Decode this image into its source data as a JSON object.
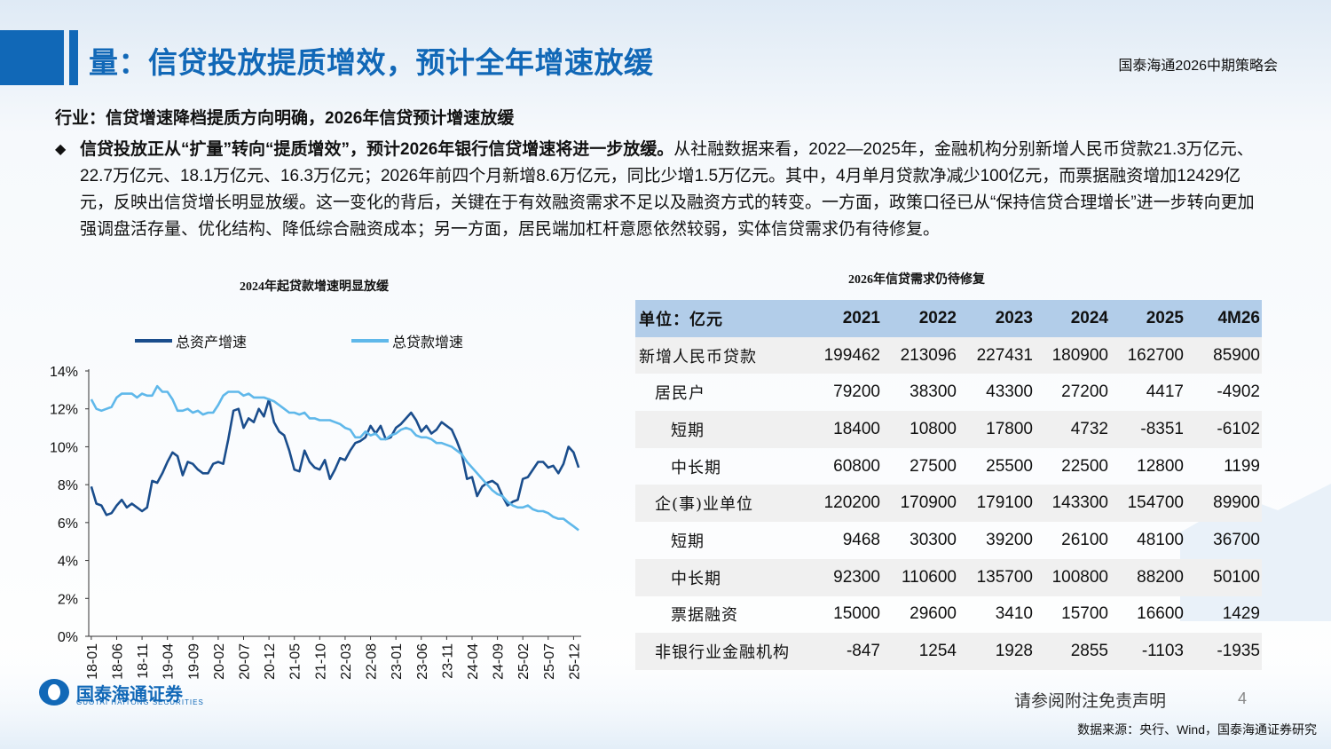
{
  "title": "量：信贷投放提质增效，预计全年增速放缓",
  "conference": "国泰海通2026中期策略会",
  "subheading": "行业：信贷增速降档提质方向明确，2026年信贷预计增速放缓",
  "bullet_symbol": "◆",
  "paragraph": {
    "bold_part": "信贷投放正从“扩量”转向“提质增效”，预计2026年银行信贷增速将进一步放缓。",
    "rest": "从社融数据来看，2022—2025年，金融机构分别新增人民币贷款21.3万亿元、22.7万亿元、18.1万亿元、16.3万亿元；2026年前四个月新增8.6万亿元，同比少增1.5万亿元。其中，4月单月贷款净减少100亿元，而票据融资增加12429亿元，反映出信贷增长明显放缓。这一变化的背后，关键在于有效融资需求不足以及融资方式的转变。一方面，政策口径已从“保持信贷合理增长”进一步转向更加强调盘活存量、优化结构、降低综合融资成本；另一方面，居民端加杠杆意愿依然较弱，实体信贷需求仍有待修复。"
  },
  "chart_data": [
    {
      "type": "line",
      "title": "2024年起贷款增速明显放缓",
      "ylim": [
        0,
        14
      ],
      "yticks": [
        "0%",
        "2%",
        "4%",
        "6%",
        "8%",
        "10%",
        "12%",
        "14%"
      ],
      "x_start_label": "18-01",
      "xticks": [
        "18-01",
        "18-06",
        "18-11",
        "19-04",
        "19-09",
        "20-02",
        "20-07",
        "20-12",
        "21-05",
        "21-10",
        "22-03",
        "22-08",
        "23-01",
        "23-06",
        "23-11",
        "24-04",
        "24-09",
        "25-02",
        "25-07",
        "25-12"
      ],
      "grid": false,
      "legend": "top",
      "series": [
        {
          "name": "总资产增速",
          "color": "#1a4d8c",
          "values": [
            7.9,
            7.0,
            6.9,
            6.4,
            6.5,
            6.9,
            7.2,
            6.8,
            7.0,
            6.8,
            6.6,
            6.8,
            8.2,
            8.1,
            8.6,
            9.2,
            9.7,
            9.5,
            8.5,
            9.2,
            9.1,
            8.8,
            8.6,
            8.6,
            9.1,
            9.2,
            9.1,
            10.4,
            11.9,
            12.0,
            11.0,
            11.5,
            11.3,
            12.0,
            11.6,
            12.5,
            11.3,
            10.8,
            10.6,
            9.8,
            8.8,
            8.7,
            9.8,
            9.2,
            8.9,
            8.8,
            9.3,
            8.3,
            8.8,
            9.4,
            9.3,
            9.8,
            10.2,
            10.3,
            10.5,
            11.1,
            10.7,
            11.1,
            10.4,
            10.5,
            11.0,
            11.2,
            11.5,
            11.8,
            11.4,
            10.8,
            11.1,
            10.7,
            10.9,
            11.3,
            11.1,
            10.9,
            10.3,
            9.6,
            8.3,
            8.4,
            7.4,
            7.9,
            8.1,
            8.2,
            8.0,
            7.4,
            6.9,
            7.1,
            7.2,
            8.3,
            8.4,
            8.8,
            9.2,
            9.2,
            8.9,
            9.0,
            8.6,
            9.1,
            10.0,
            9.7,
            8.9
          ]
        },
        {
          "name": "总贷款增速",
          "color": "#5fb8ea",
          "values": [
            12.5,
            12.0,
            11.9,
            12.0,
            12.1,
            12.6,
            12.8,
            12.8,
            12.8,
            12.6,
            12.8,
            12.7,
            12.7,
            13.2,
            12.9,
            12.9,
            12.5,
            11.9,
            11.9,
            12.0,
            11.8,
            11.9,
            11.7,
            11.8,
            11.8,
            12.2,
            12.7,
            12.9,
            12.9,
            12.9,
            12.7,
            12.8,
            12.6,
            12.6,
            12.6,
            12.5,
            12.4,
            12.2,
            12.0,
            11.8,
            11.8,
            11.7,
            11.8,
            11.5,
            11.5,
            11.4,
            11.4,
            11.4,
            11.3,
            11.2,
            11.0,
            10.9,
            10.5,
            10.5,
            10.8,
            10.6,
            10.7,
            10.4,
            10.4,
            10.6,
            10.7,
            10.9,
            11.0,
            10.9,
            10.6,
            10.5,
            10.5,
            10.4,
            10.2,
            10.2,
            10.1,
            10.0,
            9.8,
            9.6,
            9.2,
            8.9,
            8.6,
            8.3,
            8.0,
            7.7,
            7.5,
            7.4,
            7.1,
            6.9,
            6.8,
            6.8,
            6.9,
            6.7,
            6.6,
            6.6,
            6.5,
            6.3,
            6.2,
            6.2,
            6.0,
            5.8,
            5.6
          ]
        }
      ]
    },
    {
      "type": "table",
      "title": "2026年信贷需求仍待修复",
      "columns": [
        "单位：亿元",
        "2021",
        "2022",
        "2023",
        "2024",
        "2025",
        "4M26"
      ],
      "rows": [
        {
          "label": "新增人民币贷款",
          "indent": 0,
          "values": [
            "199462",
            "213096",
            "227431",
            "180900",
            "162700",
            "85900"
          ]
        },
        {
          "label": "居民户",
          "indent": 1,
          "values": [
            "79200",
            "38300",
            "43300",
            "27200",
            "4417",
            "-4902"
          ]
        },
        {
          "label": "短期",
          "indent": 2,
          "values": [
            "18400",
            "10800",
            "17800",
            "4732",
            "-8351",
            "-6102"
          ]
        },
        {
          "label": "中长期",
          "indent": 2,
          "values": [
            "60800",
            "27500",
            "25500",
            "22500",
            "12800",
            "1199"
          ]
        },
        {
          "label": "企(事)业单位",
          "indent": 1,
          "values": [
            "120200",
            "170900",
            "179100",
            "143300",
            "154700",
            "89900"
          ]
        },
        {
          "label": "短期",
          "indent": 2,
          "values": [
            "9468",
            "30300",
            "39200",
            "26100",
            "48100",
            "36700"
          ]
        },
        {
          "label": "中长期",
          "indent": 2,
          "values": [
            "92300",
            "110600",
            "135700",
            "100800",
            "88200",
            "50100"
          ]
        },
        {
          "label": "票据融资",
          "indent": 2,
          "values": [
            "15000",
            "29600",
            "3410",
            "15700",
            "16600",
            "1429"
          ]
        },
        {
          "label": "非银行业金融机构",
          "indent": 1,
          "values": [
            "-847",
            "1254",
            "1928",
            "2855",
            "-1103",
            "-1935"
          ]
        }
      ]
    }
  ],
  "disclaimer": "请参阅附注免责声明",
  "page_number": "4",
  "source": "数据来源：央行、Wind，国泰海通证券研究",
  "logo": {
    "name": "国泰海通证券",
    "sub": "GUOTAI HAITONG SECURITIES"
  }
}
